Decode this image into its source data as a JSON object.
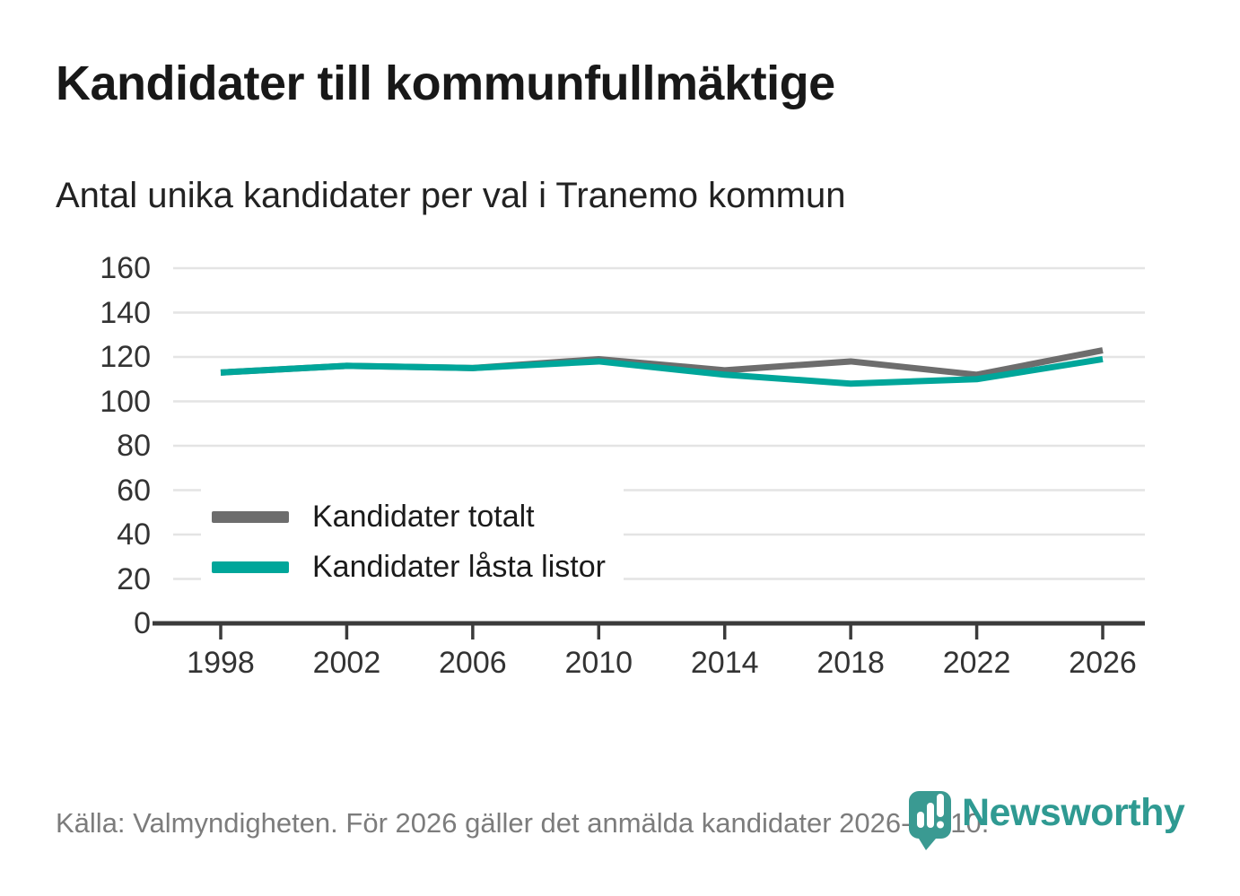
{
  "header": {
    "title": "Kandidater till kommunfullmäktige",
    "subtitle": "Antal unika kandidater per val i Tranemo kommun"
  },
  "chart_data": {
    "type": "line",
    "x": [
      1998,
      2002,
      2006,
      2010,
      2014,
      2018,
      2022,
      2026
    ],
    "xticklabels": [
      "1998",
      "2002",
      "2006",
      "2010",
      "2014",
      "2018",
      "2022",
      "2026"
    ],
    "series": [
      {
        "name": "Kandidater totalt",
        "color": "#6d6d6d",
        "values": [
          113,
          116,
          115,
          119,
          114,
          118,
          112,
          123
        ]
      },
      {
        "name": "Kandidater låsta listor",
        "color": "#00a69a",
        "values": [
          113,
          116,
          115,
          118,
          112,
          108,
          110,
          119
        ]
      }
    ],
    "title": "Kandidater till kommunfullmäktige",
    "subtitle": "Antal unika kandidater per val i Tranemo kommun",
    "xlabel": "",
    "ylabel": "",
    "ylim": [
      0,
      160
    ],
    "ytick_step": 20,
    "grid": true,
    "legend_position": "inside-left"
  },
  "legend": {
    "items": [
      {
        "label": "Kandidater totalt",
        "color": "#6d6d6d"
      },
      {
        "label": "Kandidater låsta listor",
        "color": "#00a69a"
      }
    ]
  },
  "footer": {
    "source": "Källa: Valmyndigheten. För 2026 gäller det anmälda kandidater 2026-04-10."
  },
  "logo": {
    "brand": "Newsworthy",
    "color": "#2f9a92"
  },
  "colors": {
    "accent_teal": "#00a69a",
    "line_gray": "#6d6d6d",
    "axis": "#3b3b3b",
    "grid": "#e4e4e4",
    "footer_text": "#7c7c7c"
  }
}
